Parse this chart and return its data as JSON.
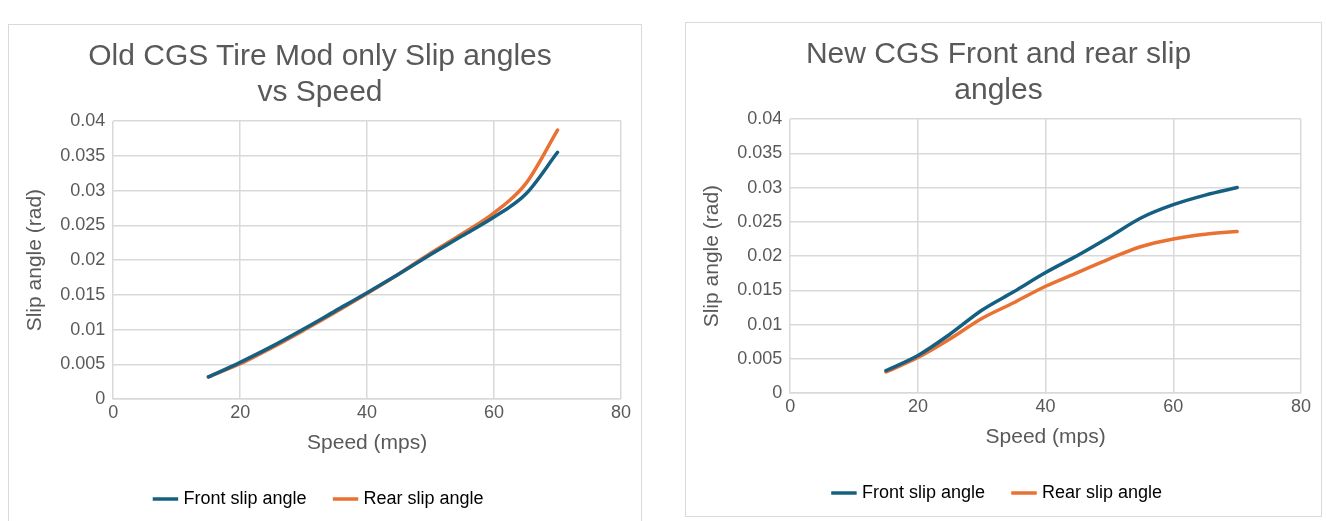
{
  "chart_data": [
    {
      "type": "line",
      "title": "Old CGS Tire Mod only Slip angles vs Speed",
      "xlabel": "Speed (mps)",
      "ylabel": "Slip angle (rad)",
      "x": [
        15,
        20,
        25,
        30,
        35,
        40,
        45,
        50,
        55,
        60,
        65,
        70
      ],
      "series": [
        {
          "name": "Front slip angle",
          "color": "#156082",
          "values": [
            0.0032,
            0.0053,
            0.0076,
            0.0101,
            0.0127,
            0.0153,
            0.018,
            0.0208,
            0.0235,
            0.0262,
            0.0295,
            0.0355
          ]
        },
        {
          "name": "Rear slip angle",
          "color": "#e97132",
          "values": [
            0.0032,
            0.0051,
            0.0074,
            0.0099,
            0.0125,
            0.0152,
            0.018,
            0.021,
            0.0238,
            0.0268,
            0.031,
            0.0387
          ]
        }
      ],
      "xlim": [
        0,
        80
      ],
      "xticks": [
        0,
        20,
        40,
        60,
        80
      ],
      "ylim": [
        0,
        0.04
      ],
      "yticks": [
        0,
        0.005,
        0.01,
        0.015,
        0.02,
        0.025,
        0.03,
        0.035,
        0.04
      ],
      "grid": true,
      "legend": "bottom",
      "marker": "none",
      "line_style": "solid"
    },
    {
      "type": "line",
      "title": "New CGS Front and rear slip angles",
      "xlabel": "Speed (mps)",
      "ylabel": "Slip angle (rad)",
      "x": [
        15,
        20,
        25,
        30,
        35,
        40,
        45,
        50,
        55,
        60,
        65,
        70
      ],
      "series": [
        {
          "name": "Front slip angle",
          "color": "#156082",
          "values": [
            0.0033,
            0.0055,
            0.0086,
            0.0121,
            0.0148,
            0.0176,
            0.0201,
            0.0228,
            0.0256,
            0.0275,
            0.0289,
            0.03
          ]
        },
        {
          "name": "Rear slip angle",
          "color": "#e97132",
          "values": [
            0.0031,
            0.0052,
            0.0079,
            0.0109,
            0.0132,
            0.0156,
            0.0176,
            0.0196,
            0.0214,
            0.0225,
            0.0232,
            0.0236
          ]
        }
      ],
      "xlim": [
        0,
        80
      ],
      "xticks": [
        0,
        20,
        40,
        60,
        80
      ],
      "ylim": [
        0,
        0.04
      ],
      "yticks": [
        0,
        0.005,
        0.01,
        0.015,
        0.02,
        0.025,
        0.03,
        0.035,
        0.04
      ],
      "grid": true,
      "legend": "bottom",
      "marker": "none",
      "line_style": "solid"
    }
  ]
}
